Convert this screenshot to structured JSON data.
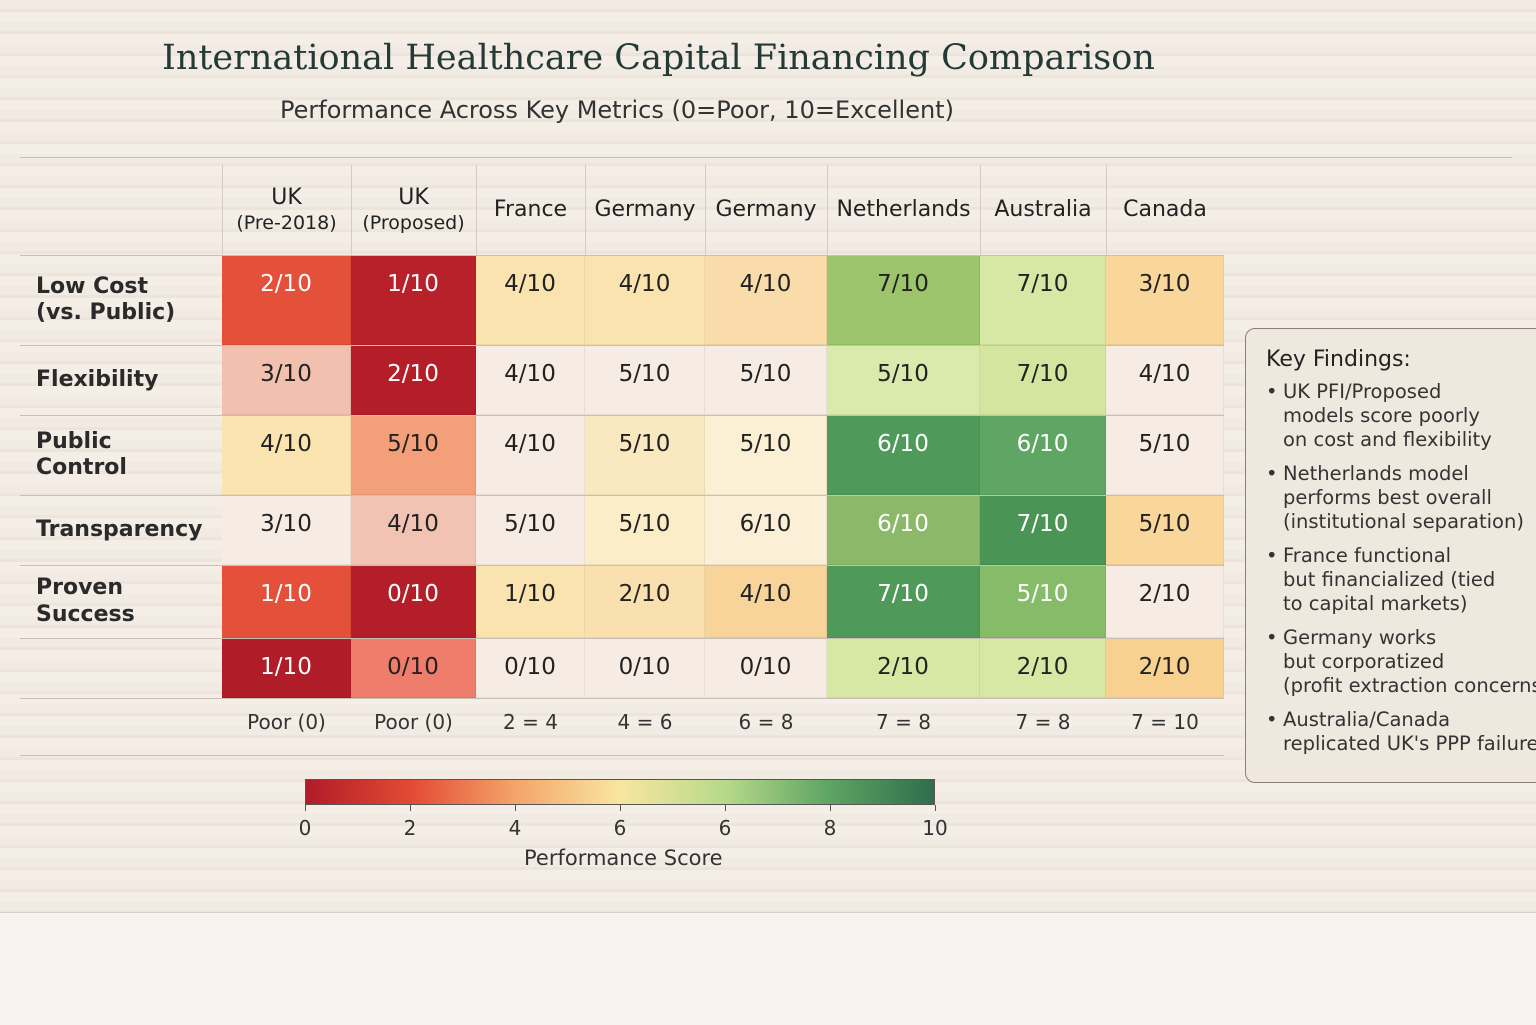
{
  "chart_data": {
    "type": "heatmap",
    "title": "International Healthcare Capital Financing Comparison",
    "subtitle": "Performance Across Key Metrics (0=Poor, 10=Excellent)",
    "columns": [
      {
        "name": "UK",
        "sub": "(Pre-2018)"
      },
      {
        "name": "UK",
        "sub": "(Proposed)"
      },
      {
        "name": "France",
        "sub": ""
      },
      {
        "name": "Germany",
        "sub": ""
      },
      {
        "name": "Germany",
        "sub": ""
      },
      {
        "name": "Netherlands",
        "sub": ""
      },
      {
        "name": "Australia",
        "sub": ""
      },
      {
        "name": "Canada",
        "sub": ""
      }
    ],
    "rows": [
      {
        "label": "Low Cost\n(vs. Public)",
        "values": [
          2,
          1,
          4,
          4,
          4,
          7,
          7,
          3
        ],
        "labels": [
          "2/10",
          "1/10",
          "4/10",
          "4/10",
          "4/10",
          "7/10",
          "7/10",
          "3/10"
        ],
        "colors": [
          "#e5503a",
          "#b8202a",
          "#fbe3b0",
          "#fbe3b0",
          "#fadcaa",
          "#9cc46a",
          "#d5e8a4",
          "#f9d69a"
        ]
      },
      {
        "label": "Flexibility",
        "values": [
          3,
          2,
          4,
          5,
          5,
          5,
          7,
          4
        ],
        "labels": [
          "3/10",
          "2/10",
          "4/10",
          "5/10",
          "5/10",
          "5/10",
          "7/10",
          "4/10"
        ],
        "colors": [
          "#f2c0ae",
          "#b41e28",
          "#f6ece4",
          "#f6ece4",
          "#f6ece4",
          "#d9eaac",
          "#d2e6a0",
          "#f6ece4"
        ]
      },
      {
        "label": "Public\nControl",
        "values": [
          4,
          5,
          4,
          5,
          5,
          6,
          6,
          5
        ],
        "labels": [
          "4/10",
          "5/10",
          "4/10",
          "5/10",
          "5/10",
          "6/10",
          "6/10",
          "5/10"
        ],
        "colors": [
          "#fbe4b0",
          "#f3a07a",
          "#f6ece4",
          "#fae8c0",
          "#fcf0d4",
          "#4f9a5a",
          "#5fa563",
          "#f6ece4"
        ]
      },
      {
        "label": "Transparency",
        "values": [
          3,
          4,
          5,
          5,
          6,
          6,
          7,
          5
        ],
        "labels": [
          "3/10",
          "4/10",
          "5/10",
          "5/10",
          "6/10",
          "6/10",
          "7/10",
          "5/10"
        ],
        "colors": [
          "#f6ece4",
          "#f2c2b2",
          "#f6ece4",
          "#fbedc8",
          "#fbefd8",
          "#8cb86a",
          "#4a9455",
          "#f9d69a"
        ]
      },
      {
        "label": "Proven\nSuccess",
        "values": [
          1,
          0,
          1,
          2,
          4,
          7,
          5,
          2
        ],
        "labels": [
          "1/10",
          "0/10",
          "1/10",
          "2/10",
          "4/10",
          "7/10",
          "5/10",
          "2/10"
        ],
        "colors": [
          "#e4503a",
          "#b41e28",
          "#fbe3b0",
          "#fae0ae",
          "#f8d49a",
          "#4f9a58",
          "#86bb68",
          "#f6ece4"
        ]
      },
      {
        "label": "",
        "values": [
          1,
          0,
          0,
          0,
          0,
          2,
          2,
          2
        ],
        "labels": [
          "1/10",
          "0/10",
          "0/10",
          "0/10",
          "0/10",
          "2/10",
          "2/10",
          "2/10"
        ],
        "colors": [
          "#b01c28",
          "#ee7d6c",
          "#f6ece4",
          "#f6ece4",
          "#f6ece4",
          "#d5e8a4",
          "#d5e8a4",
          "#f8d090"
        ]
      }
    ],
    "light_text_cells": [
      [
        0,
        0
      ],
      [
        0,
        1
      ],
      [
        1,
        1
      ],
      [
        2,
        5
      ],
      [
        2,
        6
      ],
      [
        3,
        5
      ],
      [
        3,
        6
      ],
      [
        4,
        0
      ],
      [
        4,
        1
      ],
      [
        4,
        5
      ],
      [
        4,
        6
      ],
      [
        5,
        0
      ]
    ],
    "footer_ranges": [
      "Poor (0)",
      "Poor (0)",
      "2 = 4",
      "4 = 6",
      "6 = 8",
      "7 = 8",
      "7 = 8",
      "7 = 10"
    ],
    "colorbar": {
      "label": "Performance Score",
      "range": [
        0,
        10
      ],
      "ticks": [
        "0",
        "2",
        "4",
        "6",
        "6",
        "8",
        "10"
      ],
      "colors": [
        "#b01c28",
        "#e34a33",
        "#f4a46a",
        "#f8e6a0",
        "#b7d98a",
        "#5ea463",
        "#2f6e4c"
      ]
    }
  },
  "findings": {
    "title": "Key Findings:",
    "items": [
      [
        "UK PFI/Proposed",
        "models score poorly",
        "on cost and flexibility"
      ],
      [
        "Netherlands model",
        "performs best overall",
        "(institutional separation)"
      ],
      [
        "France functional",
        "but financialized (tied",
        "to capital markets)"
      ],
      [
        "Germany works",
        "but corporatized",
        "(profit extraction concerns)"
      ],
      [
        "Australia/Canada",
        "replicated UK's PPP failures"
      ]
    ]
  }
}
